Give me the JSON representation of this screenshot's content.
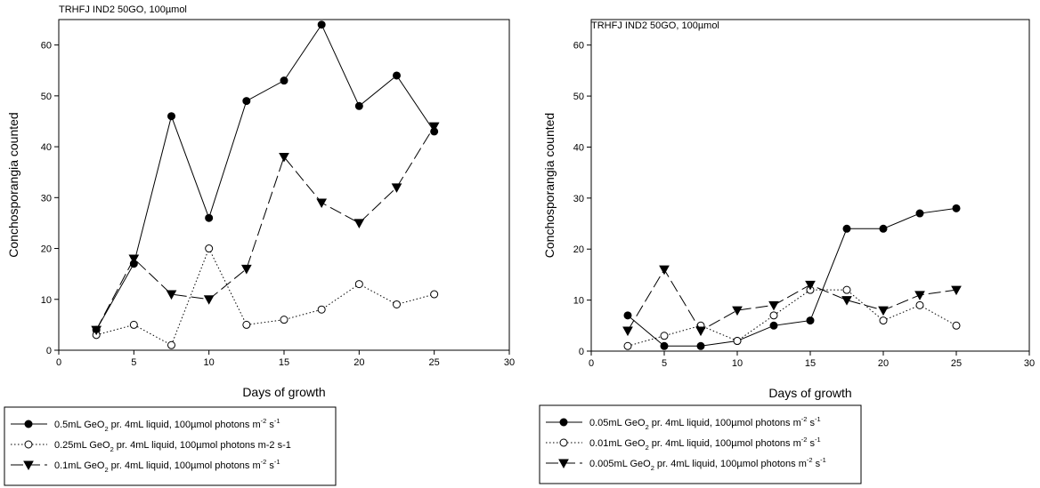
{
  "chart_data": [
    {
      "type": "line",
      "title": "TRHFJ IND2 50GO, 100µmol",
      "xlabel": "Days of growth",
      "ylabel": "Conchosporangia counted",
      "xlim": [
        0,
        30
      ],
      "ylim": [
        0,
        65
      ],
      "xticks": [
        0,
        5,
        10,
        15,
        20,
        25,
        30
      ],
      "yticks": [
        0,
        10,
        20,
        30,
        40,
        50,
        60
      ],
      "x": [
        2.5,
        5,
        7.5,
        10,
        12.5,
        15,
        17.5,
        20,
        22.5,
        25
      ],
      "legend_position": "bottom",
      "series": [
        {
          "name": "0.5mL GeO2 pr. 4mL liquid, 100µmol photons m-2 s-1",
          "legend_parts": [
            "0.5mL GeO",
            "2",
            " pr. 4mL liquid, 100µmol photons m",
            "-2",
            " s",
            "-1"
          ],
          "marker": "filled-circle",
          "line": "solid",
          "values": [
            4,
            17,
            46,
            26,
            49,
            53,
            64,
            48,
            54,
            43
          ]
        },
        {
          "name": "0.25mL GeO2 pr. 4mL liquid, 100µmol photons m-2 s-1",
          "legend_parts": [
            "0.25mL GeO",
            "2",
            " pr. 4mL liquid, 100µmol photons m-2 s-1",
            "",
            "",
            ""
          ],
          "marker": "open-circle",
          "line": "dotted",
          "values": [
            3,
            5,
            1,
            20,
            5,
            6,
            8,
            13,
            9,
            11
          ]
        },
        {
          "name": "0.1mL GeO2 pr. 4mL liquid, 100µmol photons m-2 s-1",
          "legend_parts": [
            "0.1mL GeO",
            "2",
            " pr. 4mL liquid, 100µmol photons m",
            "-2",
            " s",
            "-1"
          ],
          "marker": "filled-triangle-down",
          "line": "dash",
          "values": [
            4,
            18,
            11,
            10,
            16,
            38,
            29,
            25,
            32,
            44
          ]
        }
      ]
    },
    {
      "type": "line",
      "title": "TRHFJ IND2 50GO, 100µmol",
      "xlabel": "Days of growth",
      "ylabel": "Conchosporangia counted",
      "xlim": [
        0,
        30
      ],
      "ylim": [
        0,
        65
      ],
      "xticks": [
        0,
        5,
        10,
        15,
        20,
        25,
        30
      ],
      "yticks": [
        0,
        10,
        20,
        30,
        40,
        50,
        60
      ],
      "x": [
        2.5,
        5,
        7.5,
        10,
        12.5,
        15,
        17.5,
        20,
        22.5,
        25
      ],
      "legend_position": "bottom",
      "series": [
        {
          "name": "0.05mL GeO2 pr. 4mL liquid, 100µmol photons m-2 s-1",
          "legend_parts": [
            "0.05mL GeO",
            "2",
            " pr. 4mL liquid, 100µmol photons m",
            "-2",
            " s",
            "-1"
          ],
          "marker": "filled-circle",
          "line": "solid",
          "values": [
            7,
            1,
            1,
            2,
            5,
            6,
            24,
            24,
            27,
            28
          ]
        },
        {
          "name": "0.01mL GeO2 pr. 4mL liquid, 100µmol photons m-2 s-1",
          "legend_parts": [
            "0.01mL GeO",
            "2",
            " pr. 4mL liquid, 100µmol photons m",
            "-2",
            " s",
            "-1"
          ],
          "marker": "open-circle",
          "line": "dotted",
          "values": [
            1,
            3,
            5,
            2,
            7,
            12,
            12,
            6,
            9,
            5
          ]
        },
        {
          "name": "0.005mL GeO2 pr. 4mL liquid, 100µmol photons m-2 s-1",
          "legend_parts": [
            "0.005mL GeO",
            "2",
            " pr. 4mL liquid, 100µmol photons m",
            "-2",
            " s",
            "-1"
          ],
          "marker": "filled-triangle-down",
          "line": "dash",
          "values": [
            4,
            16,
            4,
            8,
            9,
            13,
            10,
            8,
            11,
            12
          ]
        }
      ]
    }
  ]
}
